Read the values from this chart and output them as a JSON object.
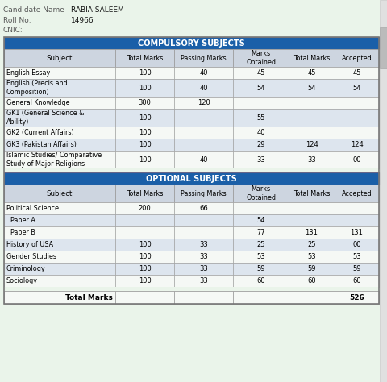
{
  "candidate_name": "RABIA SALEEM",
  "roll_no": "14966",
  "cnic": "",
  "bg_color": "#eaf4ea",
  "header_bg": "#1a5fa8",
  "header_text_color": "#ffffff",
  "col_header_bg": "#cdd5e0",
  "row_alt_bg": "#dde5ee",
  "row_bg": "#f5f8f5",
  "border_color": "#999999",
  "compulsory_subjects": [
    {
      "subject": "English Essay",
      "total": "100",
      "passing": "40",
      "obtained": "45",
      "total2": "45",
      "accepted": "45"
    },
    {
      "subject": "English (Precis and\nComposition)",
      "total": "100",
      "passing": "40",
      "obtained": "54",
      "total2": "54",
      "accepted": "54"
    },
    {
      "subject": "General Knowledge",
      "total": "300",
      "passing": "120",
      "obtained": "",
      "total2": "",
      "accepted": ""
    },
    {
      "subject": "GK1 (General Science &\nAbility)",
      "total": "100",
      "passing": "",
      "obtained": "55",
      "total2": "",
      "accepted": ""
    },
    {
      "subject": "GK2 (Current Affairs)",
      "total": "100",
      "passing": "",
      "obtained": "40",
      "total2": "",
      "accepted": ""
    },
    {
      "subject": "GK3 (Pakistan Affairs)",
      "total": "100",
      "passing": "",
      "obtained": "29",
      "total2": "124",
      "accepted": "124"
    },
    {
      "subject": "Islamic Studies/ Comparative\nStudy of Major Religions",
      "total": "100",
      "passing": "40",
      "obtained": "33",
      "total2": "33",
      "accepted": "00"
    }
  ],
  "optional_subjects": [
    {
      "subject": "Political Science",
      "total": "200",
      "passing": "66",
      "obtained": "",
      "total2": "",
      "accepted": ""
    },
    {
      "subject": "  Paper A",
      "total": "",
      "passing": "",
      "obtained": "54",
      "total2": "",
      "accepted": ""
    },
    {
      "subject": "  Paper B",
      "total": "",
      "passing": "",
      "obtained": "77",
      "total2": "131",
      "accepted": "131"
    },
    {
      "subject": "History of USA",
      "total": "100",
      "passing": "33",
      "obtained": "25",
      "total2": "25",
      "accepted": "00"
    },
    {
      "subject": "Gender Studies",
      "total": "100",
      "passing": "33",
      "obtained": "53",
      "total2": "53",
      "accepted": "53"
    },
    {
      "subject": "Criminology",
      "total": "100",
      "passing": "33",
      "obtained": "59",
      "total2": "59",
      "accepted": "59"
    },
    {
      "subject": "Sociology",
      "total": "100",
      "passing": "33",
      "obtained": "60",
      "total2": "60",
      "accepted": "60"
    }
  ],
  "total_marks_label": "Total Marks",
  "total_marks_value": "526",
  "columns": [
    "Subject",
    "Total Marks",
    "Passing Marks",
    "Marks\nObtained",
    "Total Marks",
    "Accepted"
  ]
}
